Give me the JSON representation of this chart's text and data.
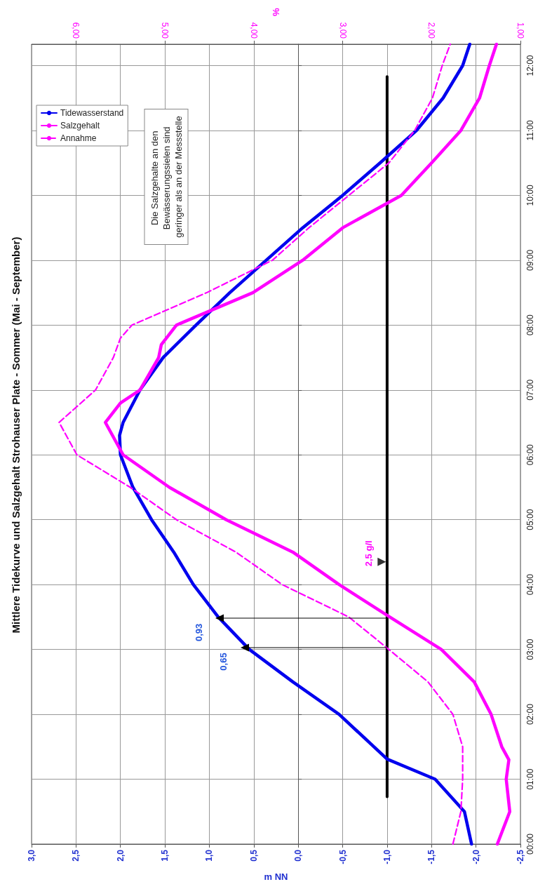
{
  "chart_data": {
    "type": "line",
    "title": "Mittlere Tidekurve und Salzgehalt Strohauser Plate - Sommer (Mai - September)",
    "xlabel": "m NN",
    "x2label": "%",
    "xlim": [
      3,
      -2.5
    ],
    "xticks": [
      {
        "value": 3,
        "label": "3,0"
      },
      {
        "value": 2.5,
        "label": "2,5"
      },
      {
        "value": 2,
        "label": "2,0"
      },
      {
        "value": 1.5,
        "label": "1,5"
      },
      {
        "value": 1,
        "label": "1,0"
      },
      {
        "value": 0.5,
        "label": "0,5"
      },
      {
        "value": 0,
        "label": "0,0"
      },
      {
        "value": -0.5,
        "label": "-0,5"
      },
      {
        "value": -1,
        "label": "-1,0"
      },
      {
        "value": -1.5,
        "label": "-1,5"
      },
      {
        "value": -2,
        "label": "-2,0"
      },
      {
        "value": -2.5,
        "label": "-2,5"
      }
    ],
    "x2lim": [
      6.5,
      1
    ],
    "x2ticks": [
      {
        "value": 6,
        "label": "6,00"
      },
      {
        "value": 5,
        "label": "5,00"
      },
      {
        "value": 4,
        "label": "4,00"
      },
      {
        "value": 3,
        "label": "3,00"
      },
      {
        "value": 2,
        "label": "2,00"
      },
      {
        "value": 1,
        "label": "1,00"
      }
    ],
    "ylim": [
      0,
      12.33
    ],
    "yticks": [
      {
        "value": 0,
        "label": "00:00"
      },
      {
        "value": 1,
        "label": "01:00"
      },
      {
        "value": 2,
        "label": "02:00"
      },
      {
        "value": 3,
        "label": "03:00"
      },
      {
        "value": 4,
        "label": "04:00"
      },
      {
        "value": 5,
        "label": "05:00"
      },
      {
        "value": 6,
        "label": "06:00"
      },
      {
        "value": 7,
        "label": "07:00"
      },
      {
        "value": 8,
        "label": "08:00"
      },
      {
        "value": 9,
        "label": "09:00"
      },
      {
        "value": 10,
        "label": "10:00"
      },
      {
        "value": 11,
        "label": "11:00"
      },
      {
        "value": 12,
        "label": "12:00"
      }
    ],
    "grid": true,
    "legend": "top left",
    "marker": "none",
    "annotations": [
      "Die Salzgehalte an den Bewässerungssielen sind geringer als an der Messstelle",
      {
        "text": "0,93",
        "x": 0.93,
        "y": 3.5
      },
      {
        "text": "0,65",
        "x": 0.65,
        "y": 3.05
      },
      {
        "text": "2,5 g/l",
        "x": -1,
        "y": 4.35
      }
    ],
    "series": [
      {
        "name": "Tidewasserstand",
        "color": "#0000ee",
        "values": [
          0,
          0.5,
          1,
          1.31,
          2,
          2.5,
          3,
          3.5,
          4,
          4.5,
          5,
          5.5,
          6,
          6.3,
          6.5,
          7,
          7.5,
          8,
          8.5,
          9,
          9.5,
          10,
          10.5,
          11,
          11.5,
          12,
          12.33
        ],
        "x": [
          -1.95,
          -1.87,
          -1.54,
          -1.0,
          -0.46,
          0.06,
          0.55,
          0.9,
          1.18,
          1.4,
          1.65,
          1.86,
          2.0,
          2.01,
          1.97,
          1.78,
          1.52,
          1.15,
          0.77,
          0.36,
          -0.05,
          -0.5,
          -0.92,
          -1.33,
          -1.63,
          -1.85,
          -1.93
        ]
      },
      {
        "name": "Salzgehalt",
        "color": "#ff00ff",
        "axis": "x2",
        "values": [
          0,
          0.5,
          1,
          1.3,
          1.5,
          2,
          2.5,
          3,
          3.5,
          4,
          4.5,
          5,
          5.5,
          6,
          6.5,
          6.8,
          7,
          7.5,
          7.7,
          8,
          8.5,
          9,
          9.5,
          10,
          10.5,
          11,
          11.5,
          12,
          12.33
        ],
        "x": [
          1.26,
          1.12,
          1.16,
          1.13,
          1.21,
          1.33,
          1.52,
          1.89,
          2.47,
          3.04,
          3.56,
          4.31,
          4.95,
          5.47,
          5.67,
          5.5,
          5.28,
          5.07,
          5.04,
          4.87,
          4.01,
          3.45,
          3.0,
          2.34,
          2.0,
          1.67,
          1.46,
          1.35,
          1.27
        ]
      },
      {
        "name": "Annahme",
        "color": "#ff00ff",
        "axis": "x2",
        "line_style": "dashed",
        "values": [
          0,
          0.5,
          1,
          1.5,
          2,
          2.5,
          3,
          3.5,
          4,
          4.5,
          5,
          5.5,
          6,
          6.5,
          7,
          7.5,
          7.8,
          8,
          8.5,
          9,
          9.5,
          10,
          10.5,
          11,
          11.5,
          12,
          12.33
        ],
        "x": [
          1.76,
          1.67,
          1.65,
          1.65,
          1.76,
          2.04,
          2.48,
          2.93,
          3.68,
          4.2,
          4.87,
          5.39,
          5.99,
          6.19,
          5.78,
          5.58,
          5.5,
          5.37,
          4.53,
          3.79,
          3.38,
          2.93,
          2.48,
          2.19,
          1.99,
          1.88,
          1.79
        ]
      },
      {
        "color": "#000000",
        "values": [
          0.73,
          11.83
        ],
        "x": [
          -1,
          -1
        ]
      },
      {
        "type": "scatter",
        "marker": "triangle",
        "color": "#000000",
        "values": [
          4.35
        ],
        "x": [
          -0.94
        ]
      }
    ]
  }
}
